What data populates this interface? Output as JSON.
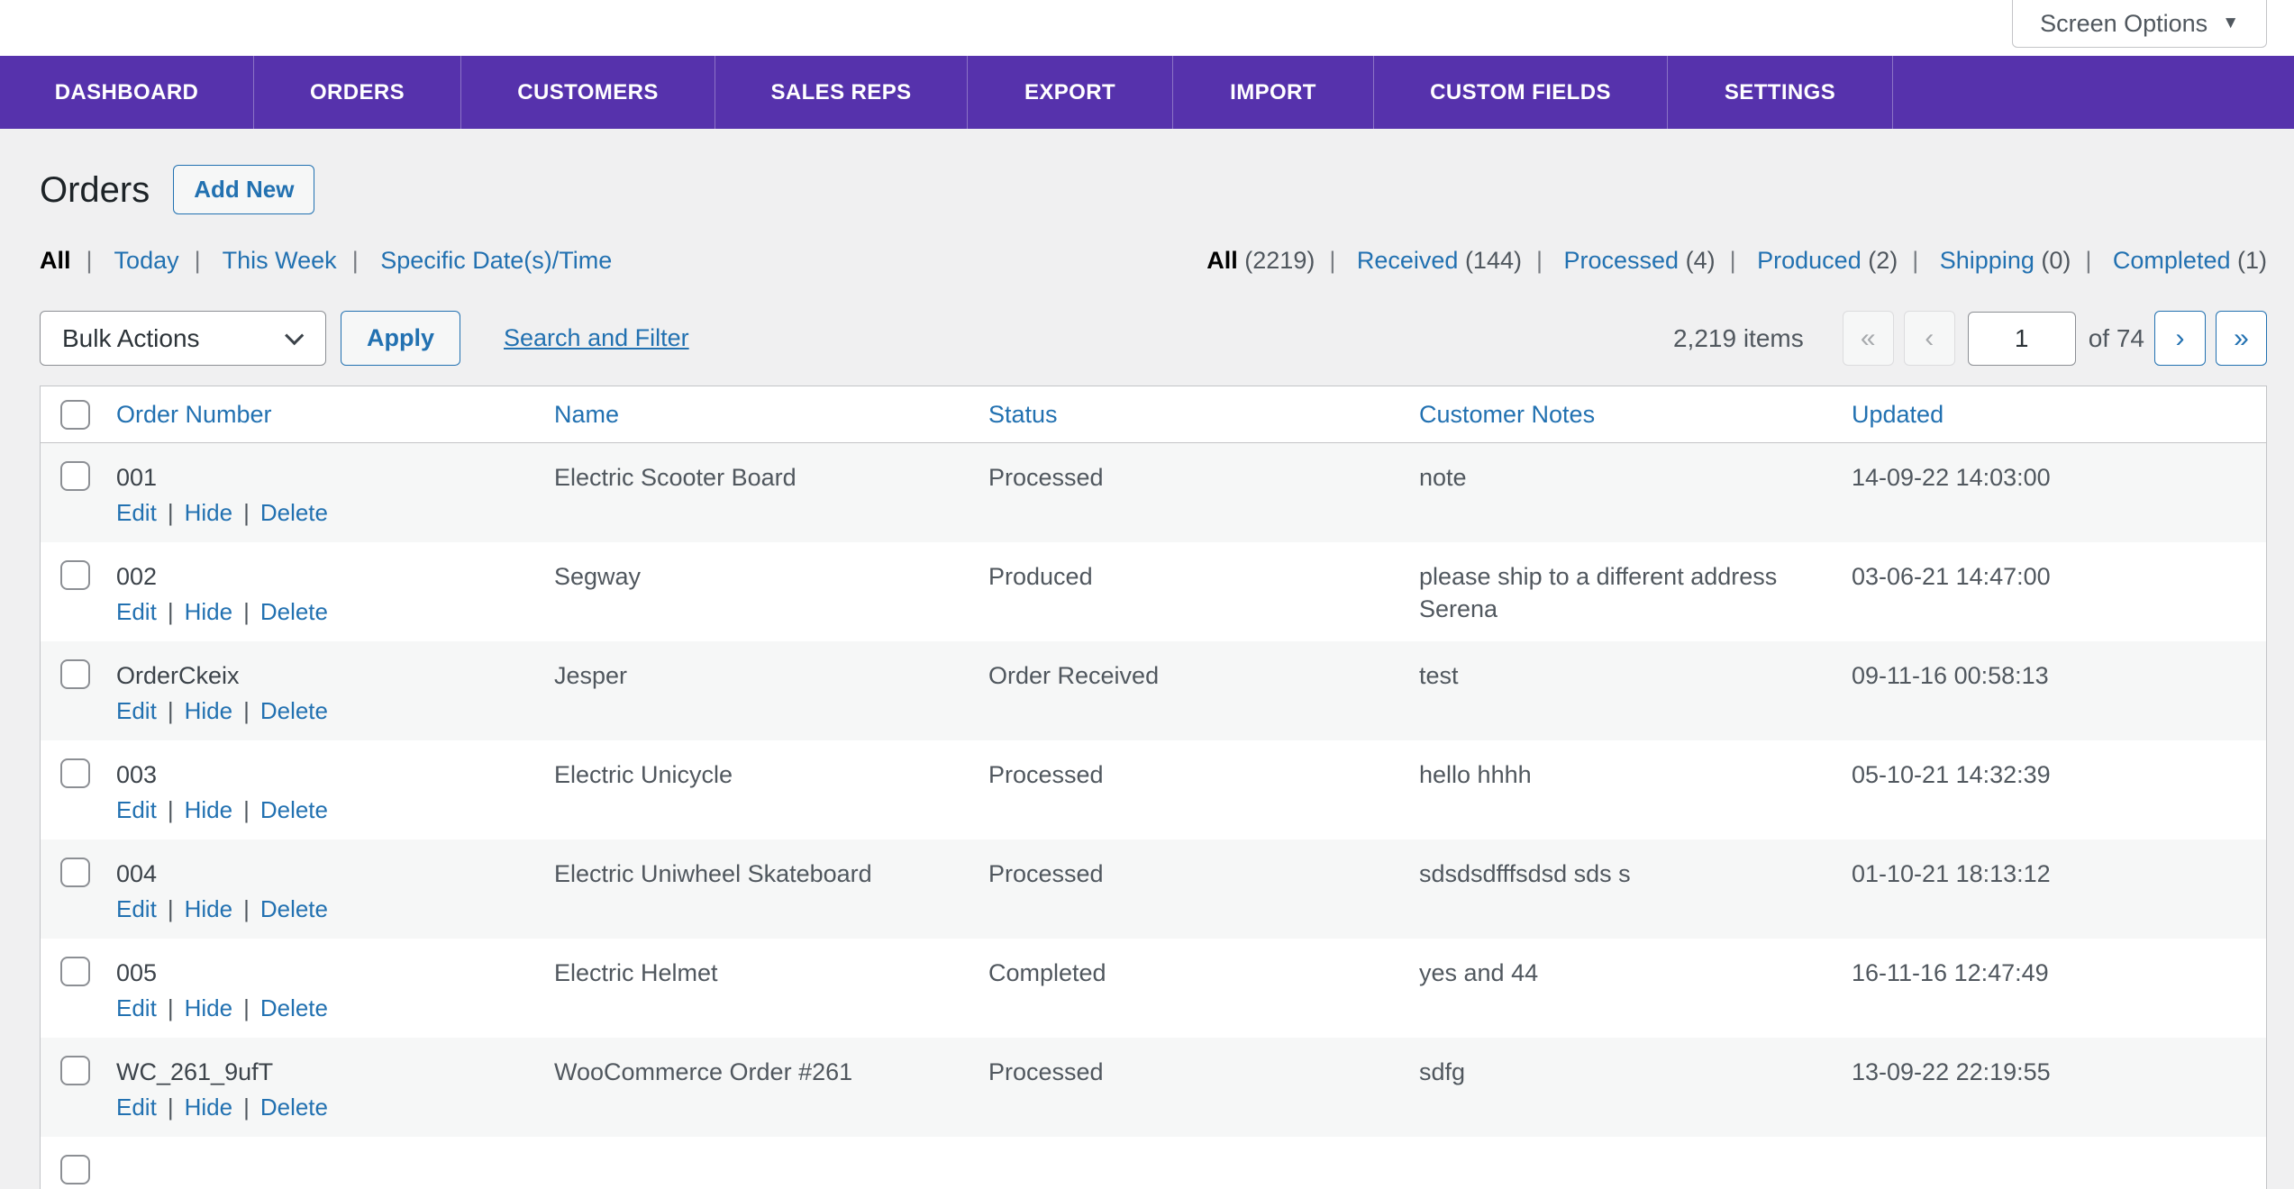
{
  "colors": {
    "accent_purple": "#5632ac",
    "link_blue": "#2271b1",
    "page_bg": "#f0f0f1",
    "row_alt_bg": "#f6f7f7"
  },
  "screen_options": {
    "label": "Screen Options"
  },
  "nav": {
    "items": [
      {
        "label": "DASHBOARD"
      },
      {
        "label": "ORDERS"
      },
      {
        "label": "CUSTOMERS"
      },
      {
        "label": "SALES REPS"
      },
      {
        "label": "EXPORT"
      },
      {
        "label": "IMPORT"
      },
      {
        "label": "CUSTOM FIELDS"
      },
      {
        "label": "SETTINGS"
      }
    ]
  },
  "page": {
    "title": "Orders",
    "add_new_label": "Add New"
  },
  "date_filters": {
    "items": [
      {
        "label": "All",
        "active": true
      },
      {
        "label": "Today"
      },
      {
        "label": "This Week"
      },
      {
        "label": "Specific Date(s)/Time"
      }
    ]
  },
  "status_filters": {
    "items": [
      {
        "label": "All",
        "count": "(2219)",
        "active": true
      },
      {
        "label": "Received",
        "count": "(144)"
      },
      {
        "label": "Processed",
        "count": "(4)"
      },
      {
        "label": "Produced",
        "count": "(2)"
      },
      {
        "label": "Shipping",
        "count": "(0)"
      },
      {
        "label": "Completed",
        "count": "(1)"
      }
    ]
  },
  "toolbar": {
    "bulk_actions_selected": "Bulk Actions",
    "apply_label": "Apply",
    "search_filter_label": "Search and Filter"
  },
  "pagination": {
    "items_text": "2,219 items",
    "first_label": "«",
    "prev_label": "‹",
    "current_page": "1",
    "of_text": "of 74",
    "next_label": "›",
    "last_label": "»"
  },
  "table": {
    "columns": [
      "Order Number",
      "Name",
      "Status",
      "Customer Notes",
      "Updated"
    ],
    "row_actions": [
      "Edit",
      "Hide",
      "Delete"
    ],
    "rows": [
      {
        "order_number": "001",
        "name": "Electric Scooter Board",
        "status": "Processed",
        "notes": "note",
        "updated": "14-09-22 14:03:00"
      },
      {
        "order_number": "002",
        "name": "Segway",
        "status": "Produced",
        "notes": "please ship to a different address Serena",
        "updated": "03-06-21 14:47:00"
      },
      {
        "order_number": "OrderCkeix",
        "name": "Jesper",
        "status": "Order Received",
        "notes": "test",
        "updated": "09-11-16 00:58:13"
      },
      {
        "order_number": "003",
        "name": "Electric Unicycle",
        "status": "Processed",
        "notes": "hello hhhh",
        "updated": "05-10-21 14:32:39"
      },
      {
        "order_number": "004",
        "name": "Electric Uniwheel Skateboard",
        "status": "Processed",
        "notes": "sdsdsdfffsdsd sds s",
        "updated": "01-10-21 18:13:12"
      },
      {
        "order_number": "005",
        "name": "Electric Helmet",
        "status": "Completed",
        "notes": "yes and 44",
        "updated": "16-11-16 12:47:49"
      },
      {
        "order_number": "WC_261_9ufT",
        "name": "WooCommerce Order #261",
        "status": "Processed",
        "notes": "sdfg",
        "updated": "13-09-22 22:19:55"
      }
    ]
  }
}
